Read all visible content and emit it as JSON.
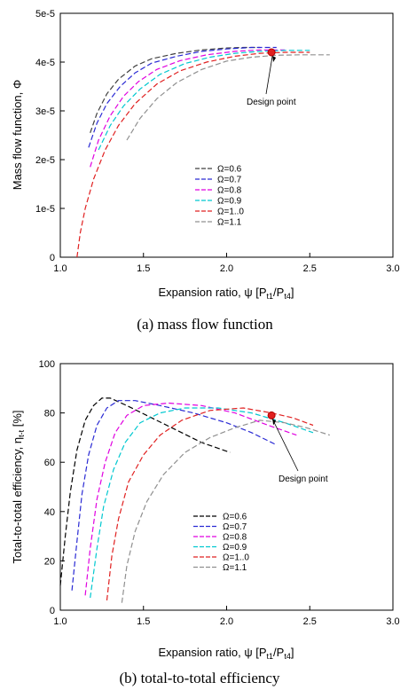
{
  "chart_data": [
    {
      "type": "line",
      "caption": "(a)  mass  flow  function",
      "xlabel": "Expansion ratio, ψ [P",
      "xlabel_sub1": "t1",
      "xlabel_mid": "/P",
      "xlabel_sub2": "t4",
      "xlabel_end": "]",
      "ylabel": "Mass flow function, Φ",
      "xlim": [
        1.0,
        3.0
      ],
      "ylim": [
        0,
        5e-05
      ],
      "xticks": [
        "1.0",
        "1.5",
        "2.0",
        "2.5",
        "3.0"
      ],
      "yticks": [
        "0",
        "1e-5",
        "2e-5",
        "3e-5",
        "4e-5",
        "5e-5"
      ],
      "annotation": {
        "text": "Design point",
        "x": 2.27,
        "y": 4.2e-05
      },
      "series": [
        {
          "name": "Ω=0.6",
          "color": "#404040",
          "points": [
            [
              1.18,
              2.55e-05
            ],
            [
              1.22,
              2.95e-05
            ],
            [
              1.28,
              3.35e-05
            ],
            [
              1.35,
              3.65e-05
            ],
            [
              1.45,
              3.92e-05
            ],
            [
              1.55,
              4.07e-05
            ],
            [
              1.7,
              4.18e-05
            ],
            [
              1.85,
              4.25e-05
            ],
            [
              2.0,
              4.29e-05
            ],
            [
              2.1,
              4.3e-05
            ],
            [
              2.2,
              4.3e-05
            ]
          ]
        },
        {
          "name": "Ω=0.7",
          "color": "#2a2ad4",
          "points": [
            [
              1.17,
              2.25e-05
            ],
            [
              1.22,
              2.75e-05
            ],
            [
              1.28,
              3.15e-05
            ],
            [
              1.36,
              3.5e-05
            ],
            [
              1.45,
              3.78e-05
            ],
            [
              1.55,
              3.98e-05
            ],
            [
              1.7,
              4.12e-05
            ],
            [
              1.85,
              4.22e-05
            ],
            [
              2.0,
              4.27e-05
            ],
            [
              2.15,
              4.3e-05
            ],
            [
              2.3,
              4.3e-05
            ]
          ]
        },
        {
          "name": "Ω=0.8",
          "color": "#e000e0",
          "points": [
            [
              1.18,
              1.85e-05
            ],
            [
              1.23,
              2.4e-05
            ],
            [
              1.3,
              2.9e-05
            ],
            [
              1.38,
              3.3e-05
            ],
            [
              1.47,
              3.6e-05
            ],
            [
              1.58,
              3.85e-05
            ],
            [
              1.72,
              4.03e-05
            ],
            [
              1.88,
              4.15e-05
            ],
            [
              2.05,
              4.22e-05
            ],
            [
              2.2,
              4.25e-05
            ],
            [
              2.35,
              4.25e-05
            ]
          ]
        },
        {
          "name": "Ω=0.9",
          "color": "#00c8d0",
          "points": [
            [
              1.23,
              2.2e-05
            ],
            [
              1.3,
              2.7e-05
            ],
            [
              1.38,
              3.1e-05
            ],
            [
              1.48,
              3.45e-05
            ],
            [
              1.6,
              3.75e-05
            ],
            [
              1.75,
              3.97e-05
            ],
            [
              1.9,
              4.1e-05
            ],
            [
              2.05,
              4.18e-05
            ],
            [
              2.2,
              4.22e-05
            ],
            [
              2.35,
              4.24e-05
            ],
            [
              2.5,
              4.24e-05
            ]
          ]
        },
        {
          "name": "Ω=1..0",
          "color": "#e02020",
          "points": [
            [
              1.1,
              0.0
            ],
            [
              1.12,
              5e-06
            ],
            [
              1.15,
              1e-05
            ],
            [
              1.2,
              1.6e-05
            ],
            [
              1.27,
              2.2e-05
            ],
            [
              1.35,
              2.7e-05
            ],
            [
              1.45,
              3.15e-05
            ],
            [
              1.58,
              3.55e-05
            ],
            [
              1.72,
              3.82e-05
            ],
            [
              1.88,
              4e-05
            ],
            [
              2.05,
              4.12e-05
            ],
            [
              2.2,
              4.18e-05
            ],
            [
              2.35,
              4.2e-05
            ],
            [
              2.5,
              4.2e-05
            ]
          ]
        },
        {
          "name": "Ω=1.1",
          "color": "#909090",
          "points": [
            [
              1.4,
              2.4e-05
            ],
            [
              1.48,
              2.85e-05
            ],
            [
              1.58,
              3.25e-05
            ],
            [
              1.7,
              3.58e-05
            ],
            [
              1.85,
              3.85e-05
            ],
            [
              2.0,
              4.02e-05
            ],
            [
              2.15,
              4.1e-05
            ],
            [
              2.3,
              4.14e-05
            ],
            [
              2.45,
              4.15e-05
            ],
            [
              2.62,
              4.15e-05
            ]
          ]
        }
      ]
    },
    {
      "type": "line",
      "caption": "(b)  total-to-total  efficiency",
      "xlabel": "Expansion ratio, ψ [P",
      "xlabel_sub1": "t1",
      "xlabel_mid": "/P",
      "xlabel_sub2": "t4",
      "xlabel_end": "]",
      "ylabel": "Total-to-total efficiency, η",
      "ylabel_sub": "t-t",
      "ylabel_end": " [%]",
      "xlim": [
        1.0,
        3.0
      ],
      "ylim": [
        0,
        100
      ],
      "xticks": [
        "1.0",
        "1.5",
        "2.0",
        "2.5",
        "3.0"
      ],
      "yticks": [
        "0",
        "20",
        "40",
        "60",
        "80",
        "100"
      ],
      "annotation": {
        "text": "Design point",
        "x": 2.27,
        "y": 79
      },
      "series": [
        {
          "name": "Ω=0.6",
          "color": "#000000",
          "points": [
            [
              1.0,
              10
            ],
            [
              1.03,
              30
            ],
            [
              1.06,
              48
            ],
            [
              1.1,
              65
            ],
            [
              1.15,
              77
            ],
            [
              1.2,
              83
            ],
            [
              1.25,
              86
            ],
            [
              1.3,
              86
            ],
            [
              1.4,
              83
            ],
            [
              1.55,
              78
            ],
            [
              1.7,
              73
            ],
            [
              1.85,
              68
            ],
            [
              2.02,
              64
            ]
          ]
        },
        {
          "name": "Ω=0.7",
          "color": "#2a2ad4",
          "points": [
            [
              1.07,
              8
            ],
            [
              1.1,
              28
            ],
            [
              1.13,
              47
            ],
            [
              1.17,
              63
            ],
            [
              1.22,
              75
            ],
            [
              1.28,
              82
            ],
            [
              1.35,
              85
            ],
            [
              1.45,
              85
            ],
            [
              1.6,
              83
            ],
            [
              1.8,
              80
            ],
            [
              2.0,
              76
            ],
            [
              2.15,
              72
            ],
            [
              2.3,
              67
            ]
          ]
        },
        {
          "name": "Ω=0.8",
          "color": "#e000e0",
          "points": [
            [
              1.15,
              6
            ],
            [
              1.18,
              25
            ],
            [
              1.22,
              45
            ],
            [
              1.27,
              60
            ],
            [
              1.33,
              72
            ],
            [
              1.4,
              79
            ],
            [
              1.5,
              83
            ],
            [
              1.65,
              84
            ],
            [
              1.85,
              83
            ],
            [
              2.05,
              80
            ],
            [
              2.25,
              75
            ],
            [
              2.42,
              71
            ]
          ]
        },
        {
          "name": "Ω=0.9",
          "color": "#00c8d0",
          "points": [
            [
              1.18,
              5
            ],
            [
              1.22,
              25
            ],
            [
              1.26,
              42
            ],
            [
              1.32,
              57
            ],
            [
              1.39,
              68
            ],
            [
              1.48,
              76
            ],
            [
              1.6,
              80
            ],
            [
              1.75,
              82
            ],
            [
              1.95,
              82
            ],
            [
              2.15,
              80
            ],
            [
              2.35,
              76
            ],
            [
              2.52,
              72
            ]
          ]
        },
        {
          "name": "Ω=1..0",
          "color": "#e02020",
          "points": [
            [
              1.28,
              4
            ],
            [
              1.31,
              22
            ],
            [
              1.35,
              37
            ],
            [
              1.41,
              52
            ],
            [
              1.5,
              63
            ],
            [
              1.6,
              71
            ],
            [
              1.73,
              77
            ],
            [
              1.9,
              81
            ],
            [
              2.1,
              82
            ],
            [
              2.27,
              80
            ],
            [
              2.4,
              78
            ],
            [
              2.52,
              75
            ]
          ]
        },
        {
          "name": "Ω=1.1",
          "color": "#909090",
          "points": [
            [
              1.37,
              3
            ],
            [
              1.4,
              18
            ],
            [
              1.45,
              32
            ],
            [
              1.52,
              44
            ],
            [
              1.62,
              55
            ],
            [
              1.75,
              64
            ],
            [
              1.9,
              70
            ],
            [
              2.05,
              74
            ],
            [
              2.2,
              77
            ],
            [
              2.35,
              76
            ],
            [
              2.48,
              74
            ],
            [
              2.62,
              71
            ]
          ]
        }
      ]
    }
  ]
}
